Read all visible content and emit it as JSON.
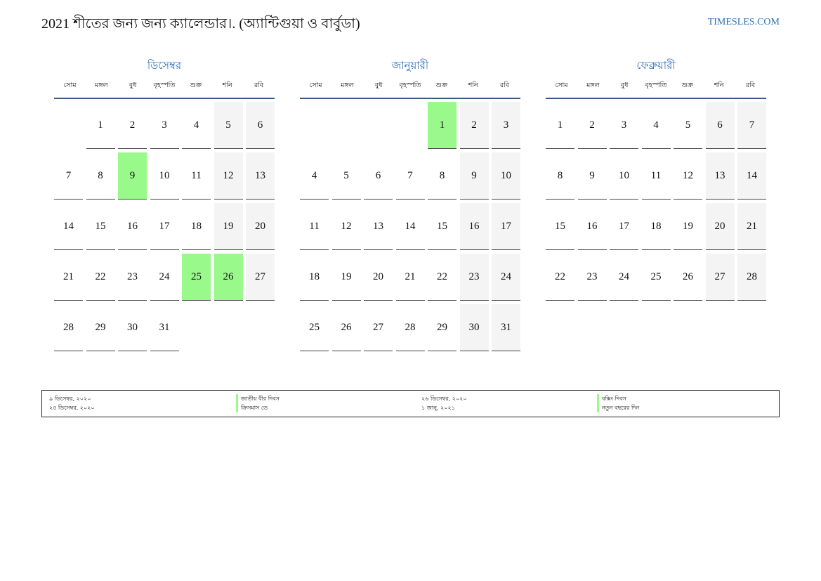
{
  "header": {
    "title": "2021 শীতের জন্য জন্য ক্যালেন্ডার।. (অ্যান্টিগুয়া ও বার্বুডা)",
    "site": "TIMESLES.COM"
  },
  "weekdays": [
    "সোম",
    "মঙ্গল",
    "বুধ",
    "বৃহস্পতি",
    "শুক্র",
    "শনি",
    "রবি"
  ],
  "colors": {
    "accent": "#2a70b8",
    "holiday": "#99f98a",
    "weekend": "#f4f4f4"
  },
  "months": [
    {
      "name": "ডিসেম্বর",
      "cells": [
        null,
        1,
        2,
        3,
        4,
        5,
        6,
        7,
        8,
        9,
        10,
        11,
        12,
        13,
        14,
        15,
        16,
        17,
        18,
        19,
        20,
        21,
        22,
        23,
        24,
        25,
        26,
        27,
        28,
        29,
        30,
        31
      ],
      "holidays": [
        9,
        25,
        26
      ]
    },
    {
      "name": "জানুয়ারী",
      "cells": [
        null,
        null,
        null,
        null,
        1,
        2,
        3,
        4,
        5,
        6,
        7,
        8,
        9,
        10,
        11,
        12,
        13,
        14,
        15,
        16,
        17,
        18,
        19,
        20,
        21,
        22,
        23,
        24,
        25,
        26,
        27,
        28,
        29,
        30,
        31
      ],
      "holidays": [
        1
      ]
    },
    {
      "name": "ফেব্রুয়ারী",
      "cells": [
        1,
        2,
        3,
        4,
        5,
        6,
        7,
        8,
        9,
        10,
        11,
        12,
        13,
        14,
        15,
        16,
        17,
        18,
        19,
        20,
        21,
        22,
        23,
        24,
        25,
        26,
        27,
        28
      ],
      "holidays": []
    }
  ],
  "legend": [
    {
      "date": "৯ ডিসেম্বর, ২০২০",
      "name": "জাতীয় বীর দিবস"
    },
    {
      "date": "২৫ ডিসেম্বর, ২০২০",
      "name": "ক্রিসমাস ডে"
    },
    {
      "date": "২৬ ডিসেম্বর, ২০২০",
      "name": "বক্সিং দিবস"
    },
    {
      "date": "১ জানু, ২০২১",
      "name": "নতুন বছরের দিন"
    }
  ]
}
